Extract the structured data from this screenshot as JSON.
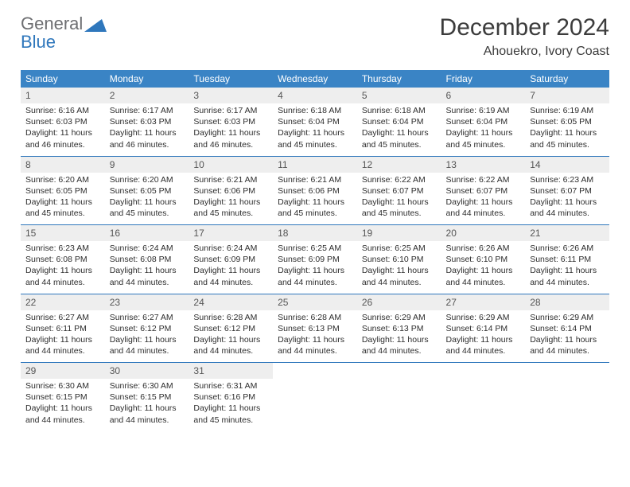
{
  "logo": {
    "line1": "General",
    "line2": "Blue"
  },
  "title": "December 2024",
  "location": "Ahouekro, Ivory Coast",
  "colors": {
    "header_bg": "#3a84c5",
    "header_text": "#ffffff",
    "daynum_bg": "#eeeeee",
    "rule": "#2f77bc",
    "logo_gray": "#6d6e71",
    "logo_blue": "#2f77bc"
  },
  "day_headers": [
    "Sunday",
    "Monday",
    "Tuesday",
    "Wednesday",
    "Thursday",
    "Friday",
    "Saturday"
  ],
  "cells": [
    {
      "n": "1",
      "sr": "6:16 AM",
      "ss": "6:03 PM",
      "dl": "11 hours and 46 minutes."
    },
    {
      "n": "2",
      "sr": "6:17 AM",
      "ss": "6:03 PM",
      "dl": "11 hours and 46 minutes."
    },
    {
      "n": "3",
      "sr": "6:17 AM",
      "ss": "6:03 PM",
      "dl": "11 hours and 46 minutes."
    },
    {
      "n": "4",
      "sr": "6:18 AM",
      "ss": "6:04 PM",
      "dl": "11 hours and 45 minutes."
    },
    {
      "n": "5",
      "sr": "6:18 AM",
      "ss": "6:04 PM",
      "dl": "11 hours and 45 minutes."
    },
    {
      "n": "6",
      "sr": "6:19 AM",
      "ss": "6:04 PM",
      "dl": "11 hours and 45 minutes."
    },
    {
      "n": "7",
      "sr": "6:19 AM",
      "ss": "6:05 PM",
      "dl": "11 hours and 45 minutes."
    },
    {
      "n": "8",
      "sr": "6:20 AM",
      "ss": "6:05 PM",
      "dl": "11 hours and 45 minutes."
    },
    {
      "n": "9",
      "sr": "6:20 AM",
      "ss": "6:05 PM",
      "dl": "11 hours and 45 minutes."
    },
    {
      "n": "10",
      "sr": "6:21 AM",
      "ss": "6:06 PM",
      "dl": "11 hours and 45 minutes."
    },
    {
      "n": "11",
      "sr": "6:21 AM",
      "ss": "6:06 PM",
      "dl": "11 hours and 45 minutes."
    },
    {
      "n": "12",
      "sr": "6:22 AM",
      "ss": "6:07 PM",
      "dl": "11 hours and 45 minutes."
    },
    {
      "n": "13",
      "sr": "6:22 AM",
      "ss": "6:07 PM",
      "dl": "11 hours and 44 minutes."
    },
    {
      "n": "14",
      "sr": "6:23 AM",
      "ss": "6:07 PM",
      "dl": "11 hours and 44 minutes."
    },
    {
      "n": "15",
      "sr": "6:23 AM",
      "ss": "6:08 PM",
      "dl": "11 hours and 44 minutes."
    },
    {
      "n": "16",
      "sr": "6:24 AM",
      "ss": "6:08 PM",
      "dl": "11 hours and 44 minutes."
    },
    {
      "n": "17",
      "sr": "6:24 AM",
      "ss": "6:09 PM",
      "dl": "11 hours and 44 minutes."
    },
    {
      "n": "18",
      "sr": "6:25 AM",
      "ss": "6:09 PM",
      "dl": "11 hours and 44 minutes."
    },
    {
      "n": "19",
      "sr": "6:25 AM",
      "ss": "6:10 PM",
      "dl": "11 hours and 44 minutes."
    },
    {
      "n": "20",
      "sr": "6:26 AM",
      "ss": "6:10 PM",
      "dl": "11 hours and 44 minutes."
    },
    {
      "n": "21",
      "sr": "6:26 AM",
      "ss": "6:11 PM",
      "dl": "11 hours and 44 minutes."
    },
    {
      "n": "22",
      "sr": "6:27 AM",
      "ss": "6:11 PM",
      "dl": "11 hours and 44 minutes."
    },
    {
      "n": "23",
      "sr": "6:27 AM",
      "ss": "6:12 PM",
      "dl": "11 hours and 44 minutes."
    },
    {
      "n": "24",
      "sr": "6:28 AM",
      "ss": "6:12 PM",
      "dl": "11 hours and 44 minutes."
    },
    {
      "n": "25",
      "sr": "6:28 AM",
      "ss": "6:13 PM",
      "dl": "11 hours and 44 minutes."
    },
    {
      "n": "26",
      "sr": "6:29 AM",
      "ss": "6:13 PM",
      "dl": "11 hours and 44 minutes."
    },
    {
      "n": "27",
      "sr": "6:29 AM",
      "ss": "6:14 PM",
      "dl": "11 hours and 44 minutes."
    },
    {
      "n": "28",
      "sr": "6:29 AM",
      "ss": "6:14 PM",
      "dl": "11 hours and 44 minutes."
    },
    {
      "n": "29",
      "sr": "6:30 AM",
      "ss": "6:15 PM",
      "dl": "11 hours and 44 minutes."
    },
    {
      "n": "30",
      "sr": "6:30 AM",
      "ss": "6:15 PM",
      "dl": "11 hours and 44 minutes."
    },
    {
      "n": "31",
      "sr": "6:31 AM",
      "ss": "6:16 PM",
      "dl": "11 hours and 45 minutes."
    }
  ],
  "labels": {
    "sunrise": "Sunrise: ",
    "sunset": "Sunset: ",
    "daylight": "Daylight: "
  }
}
